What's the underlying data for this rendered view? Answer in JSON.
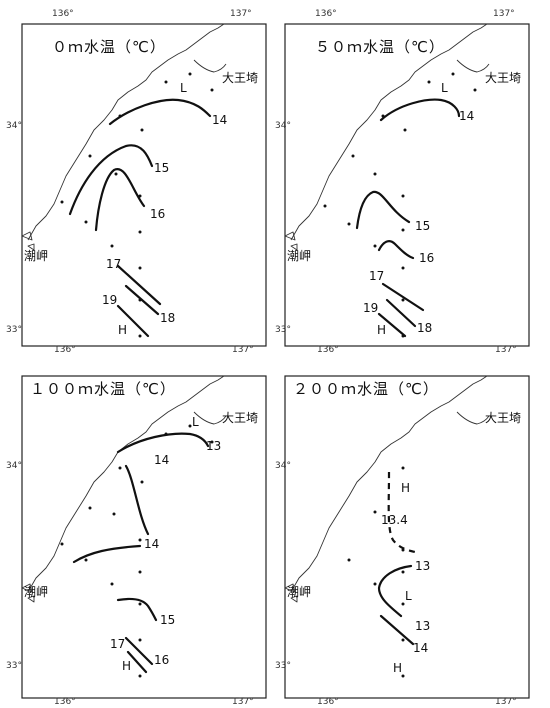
{
  "axis_labels": {
    "lon_136": "136°",
    "lon_137": "137°",
    "lat_34": "34°",
    "lat_33": "33°"
  },
  "places": {
    "daiozaki": "大王埼",
    "shiono_misaki": "潮岬"
  },
  "panels": [
    {
      "title": "０ｍ水温（℃）",
      "labels": {
        "L": "L",
        "H": "H",
        "iso_14": "14",
        "iso_15": "15",
        "iso_16": "16",
        "iso_17": "17",
        "iso_18": "18",
        "iso_19": "19"
      }
    },
    {
      "title": "５０ｍ水温（℃）",
      "labels": {
        "L": "L",
        "H": "H",
        "iso_14": "14",
        "iso_15": "15",
        "iso_16": "16",
        "iso_17": "17",
        "iso_18": "18",
        "iso_19": "19"
      }
    },
    {
      "title": "１００ｍ水温（℃）",
      "labels": {
        "L": "L",
        "H": "H",
        "iso_13": "13",
        "iso_14a": "14",
        "iso_14b": "14",
        "iso_15": "15",
        "iso_16": "16",
        "iso_17": "17"
      }
    },
    {
      "title": "２００ｍ水温（℃）",
      "labels": {
        "H_top": "H",
        "iso_134": "13.4",
        "iso_13a": "13",
        "L": "L",
        "iso_13b": "13",
        "iso_14": "14",
        "H_bottom": "H"
      }
    }
  ]
}
